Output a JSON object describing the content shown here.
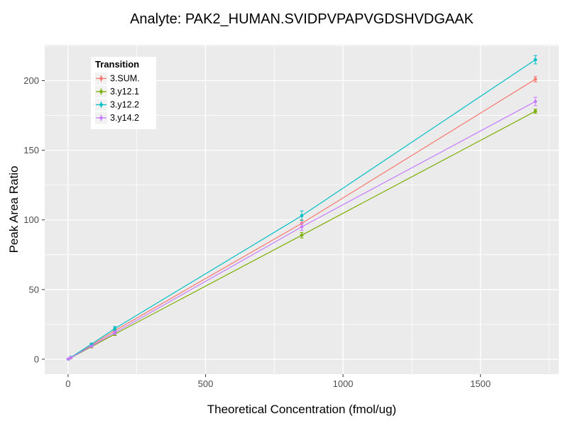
{
  "chart_data": {
    "type": "line",
    "title": "Analyte: PAK2_HUMAN.SVIDPVPAPVGDSHVDGAAK",
    "xlabel": "Theoretical Concentration (fmol/ug)",
    "ylabel": "Peak Area Ratio",
    "legend_title": "Transition",
    "legend_position": "top-left-inside",
    "x": [
      1,
      10,
      85,
      170,
      850,
      1700
    ],
    "series": [
      {
        "name": "3.SUM.",
        "color": "#F8766D",
        "values": [
          0.1,
          1.2,
          10.0,
          20.5,
          97.5,
          201
        ],
        "errors": [
          0.05,
          0.1,
          0.3,
          1.2,
          2.5,
          2.0
        ]
      },
      {
        "name": "3.y12.1",
        "color": "#7CAE00",
        "values": [
          0.1,
          1.0,
          8.9,
          18.0,
          89.0,
          178
        ],
        "errors": [
          0.05,
          0.1,
          0.3,
          1.0,
          2.0,
          1.5
        ]
      },
      {
        "name": "3.y12.2",
        "color": "#00BFC4",
        "values": [
          0.1,
          1.3,
          10.8,
          22.0,
          103.0,
          215
        ],
        "errors": [
          0.05,
          0.1,
          0.4,
          1.5,
          3.5,
          3.0
        ]
      },
      {
        "name": "3.y14.2",
        "color": "#C77CFF",
        "values": [
          0.1,
          1.1,
          9.3,
          19.0,
          95.0,
          185
        ],
        "errors": [
          0.05,
          0.1,
          0.3,
          1.2,
          2.5,
          3.0
        ]
      }
    ],
    "x_ticks": [
      0,
      500,
      1000,
      1500
    ],
    "y_ticks": [
      0,
      50,
      100,
      150,
      200
    ],
    "xlim": [
      -85,
      1785
    ],
    "ylim": [
      -10.75,
      225.75
    ],
    "grid": "major+minor",
    "panel_bg": "#EBEBEB",
    "grid_color": "#FFFFFF",
    "tick_label_color": "#4D4D4D",
    "legend_key_bg": "#F2F2F2"
  }
}
